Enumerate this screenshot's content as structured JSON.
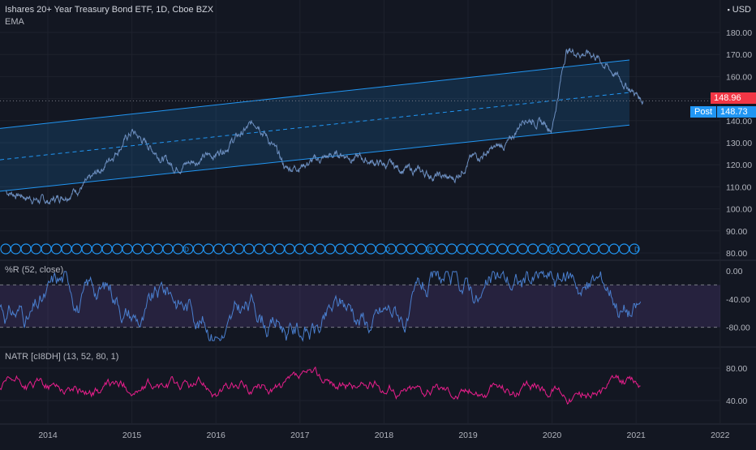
{
  "header": {
    "title": "Ishares 20+ Year Treasury Bond ETF, 1D, Cboe BZX",
    "indicator": "EMA",
    "currency": "USD"
  },
  "main_pane": {
    "y_ticks": [
      "180.00",
      "170.00",
      "160.00",
      "150.00",
      "140.00",
      "130.00",
      "120.00",
      "110.00",
      "100.00",
      "90.00",
      "80.00"
    ],
    "last_price": "148.96",
    "post_label": "Post",
    "post_price": "148.73",
    "event_marker_letter": "D"
  },
  "wr_pane": {
    "label": "%R (52, close)",
    "y_ticks": [
      "0.00",
      "-40.00",
      "-80.00"
    ]
  },
  "natr_pane": {
    "label": "NATR [cI8DH] (13, 52, 80, 1)",
    "y_ticks": [
      "80.00",
      "40.00"
    ]
  },
  "x_axis": {
    "labels": [
      "2014",
      "2015",
      "2016",
      "2017",
      "2018",
      "2019",
      "2020",
      "2021",
      "2022"
    ]
  },
  "colors": {
    "background": "#131722",
    "price_line": "#6c8ebf",
    "channel": "#2196f3",
    "last_price_tag": "#f23645",
    "post_tag": "#2196f3",
    "wr_line": "#4a7fcf",
    "wr_zone": "#3b1f5e",
    "natr_line": "#e91e8c"
  },
  "chart_data": [
    {
      "type": "line",
      "name": "price",
      "x": [
        "2014-01",
        "2014-07",
        "2015-01",
        "2015-07",
        "2016-01",
        "2016-07",
        "2016-11",
        "2017-01",
        "2017-07",
        "2018-01",
        "2018-07",
        "2018-11",
        "2019-01",
        "2019-07",
        "2019-09",
        "2020-01",
        "2020-03",
        "2020-07",
        "2020-11",
        "2021-01",
        "2021-02"
      ],
      "values": [
        103,
        112,
        135,
        119,
        125,
        140,
        118,
        120,
        125,
        120,
        116,
        113,
        122,
        130,
        142,
        137,
        172,
        170,
        158,
        152,
        149
      ],
      "ylim": [
        78,
        184
      ]
    },
    {
      "type": "line",
      "name": "%R (52, close)",
      "ylim": [
        -100,
        0
      ]
    },
    {
      "type": "line",
      "name": "NATR",
      "ylim": [
        10,
        100
      ]
    }
  ]
}
